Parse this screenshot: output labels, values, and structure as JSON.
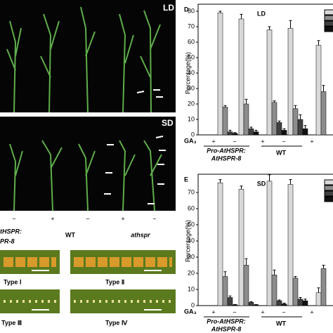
{
  "photos": {
    "day_labels": [
      "LD",
      "SD"
    ],
    "treatments": [
      "−",
      "+",
      "−",
      "+",
      "−"
    ],
    "genotypes": [
      "tHSPR:",
      "PR-8",
      "WT",
      "athspr"
    ],
    "types": [
      "Type Ⅰ",
      "Type Ⅱ",
      "Type Ⅲ",
      "Type Ⅳ"
    ]
  },
  "chart_data": [
    {
      "type": "bar",
      "panel": "D",
      "title": "LD",
      "ylabel": "Percentage(%)",
      "xlabel": "GA₃",
      "categories": [
        "+",
        "−",
        "+",
        "−",
        "+"
      ],
      "group_labels": [
        "Pro-AtHSPR:",
        "AtHSPR-8",
        "WT"
      ],
      "ylim": [
        0,
        80
      ],
      "yticks": [
        0,
        10,
        20,
        30,
        40,
        50,
        60,
        70,
        80
      ],
      "series": [
        {
          "color": "#d9d9d9",
          "values": [
            79,
            75,
            68,
            69,
            58
          ],
          "errors": [
            1,
            3,
            2,
            5,
            3
          ]
        },
        {
          "color": "#8c8c8c",
          "values": [
            18,
            20,
            21,
            17,
            28
          ],
          "errors": [
            1,
            3,
            1,
            2,
            4
          ]
        },
        {
          "color": "#404040",
          "values": [
            2,
            4,
            8,
            10,
            null
          ],
          "errors": [
            1,
            1,
            1,
            3,
            null
          ]
        },
        {
          "color": "#111111",
          "values": [
            1,
            2,
            3,
            4,
            null
          ],
          "errors": [
            0.5,
            1,
            1,
            2,
            null
          ]
        }
      ]
    },
    {
      "type": "bar",
      "panel": "E",
      "title": "SD",
      "ylabel": "Percentage(%)",
      "xlabel": "GA₃",
      "categories": [
        "+",
        "−",
        "+",
        "−",
        "+"
      ],
      "group_labels": [
        "Pro-AtHSPR:",
        "AtHSPR-8",
        "WT"
      ],
      "ylim": [
        0,
        80
      ],
      "yticks": [
        0,
        10,
        20,
        30,
        40,
        50,
        60,
        70
      ],
      "series": [
        {
          "color": "#d9d9d9",
          "values": [
            76,
            72,
            77,
            75,
            8
          ],
          "errors": [
            2,
            2,
            4,
            3,
            3
          ]
        },
        {
          "color": "#8c8c8c",
          "values": [
            18,
            25,
            19,
            17,
            23
          ],
          "errors": [
            3,
            4,
            3,
            1,
            2
          ]
        },
        {
          "color": "#404040",
          "values": [
            5,
            2,
            3,
            4,
            null
          ],
          "errors": [
            1,
            0.5,
            0.5,
            1,
            null
          ]
        },
        {
          "color": "#111111",
          "values": [
            0.5,
            0.5,
            1,
            3,
            null
          ],
          "errors": [
            0.2,
            0.2,
            0.5,
            1,
            null
          ]
        }
      ]
    }
  ]
}
